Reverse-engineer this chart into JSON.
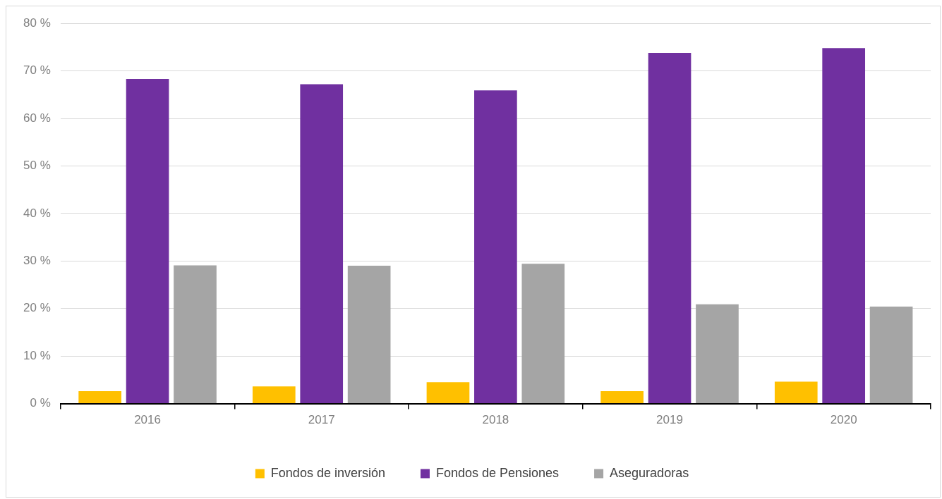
{
  "chart_data": {
    "type": "bar",
    "categories": [
      "2016",
      "2017",
      "2018",
      "2019",
      "2020"
    ],
    "series": [
      {
        "name": "Fondos de inversión",
        "color": "#ffc000",
        "values": [
          2.6,
          3.6,
          4.5,
          2.6,
          4.6
        ]
      },
      {
        "name": "Fondos de Pensiones",
        "color": "#7030a0",
        "values": [
          68.3,
          67.2,
          65.9,
          73.8,
          74.8
        ]
      },
      {
        "name": "Aseguradoras",
        "color": "#a5a5a5",
        "values": [
          29.1,
          29.0,
          29.4,
          20.9,
          20.4
        ]
      }
    ],
    "ylim": [
      0,
      80
    ],
    "yticks": [
      {
        "value": 0,
        "label": "0 %"
      },
      {
        "value": 10,
        "label": "10 %"
      },
      {
        "value": 20,
        "label": "20 %"
      },
      {
        "value": 30,
        "label": "30 %"
      },
      {
        "value": 40,
        "label": "40 %"
      },
      {
        "value": 50,
        "label": "50 %"
      },
      {
        "value": 60,
        "label": "60 %"
      },
      {
        "value": 70,
        "label": "70 %"
      },
      {
        "value": 80,
        "label": "80 %"
      }
    ],
    "grid": "y",
    "legend": "bottom"
  }
}
